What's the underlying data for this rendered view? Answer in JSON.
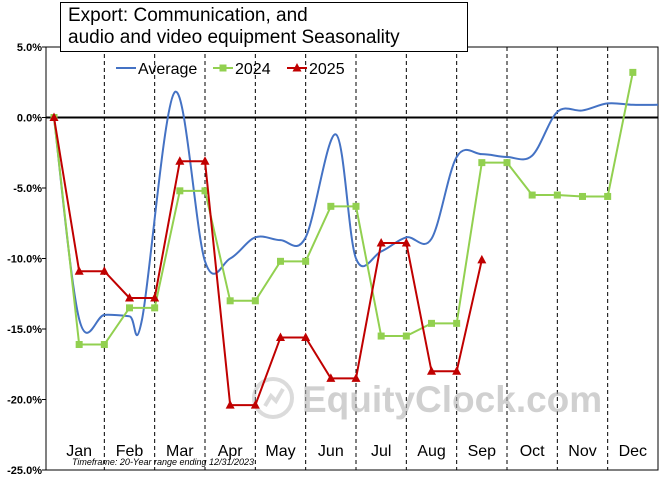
{
  "chart_data": {
    "type": "line",
    "title_lines": [
      "Export: Communication, and",
      "audio and video equipment Seasonality"
    ],
    "months": [
      "Jan",
      "Feb",
      "Mar",
      "Apr",
      "May",
      "Jun",
      "Jul",
      "Aug",
      "Sep",
      "Oct",
      "Nov",
      "Dec"
    ],
    "ylim": [
      -25,
      5
    ],
    "yticks": [
      "5.0%",
      "0.0%",
      "-5.0%",
      "-10.0%",
      "-15.0%",
      "-20.0%",
      "-25.0%"
    ],
    "ytick_values": [
      5,
      0,
      -5,
      -10,
      -15,
      -20,
      -25
    ],
    "footnote": "Timeframe: 20-Year range ending 12/31/2023",
    "watermark": "EquityClock.com",
    "legend_position": "top",
    "series": [
      {
        "name": "Average",
        "color": "#4472c4",
        "smooth": true,
        "marker": "none",
        "x": [
          0,
          0.5,
          1.0,
          1.5,
          1.75,
          2.4,
          3.0,
          3.5,
          4.0,
          4.5,
          5.0,
          5.6,
          6.0,
          6.5,
          7.0,
          7.5,
          8.0,
          8.5,
          9.0,
          9.5,
          10.0,
          10.5,
          11.0,
          11.5,
          12.0
        ],
        "y": [
          0,
          -14.3,
          -14.0,
          -14.1,
          -14.3,
          1.8,
          -10.2,
          -10.0,
          -8.5,
          -8.7,
          -8.5,
          -1.2,
          -10.0,
          -9.5,
          -8.5,
          -8.6,
          -2.8,
          -2.6,
          -2.8,
          -2.7,
          0.4,
          0.5,
          1.0,
          0.9,
          0.9
        ]
      },
      {
        "name": "2024",
        "color": "#92d050",
        "smooth": false,
        "marker": "square",
        "x": [
          0,
          0.5,
          1.0,
          1.5,
          2.0,
          2.5,
          3.0,
          3.5,
          4.0,
          4.5,
          5.0,
          5.5,
          6.0,
          6.5,
          7.0,
          7.5,
          8.0,
          8.5,
          9.0,
          9.5,
          10.0,
          10.5,
          11.0,
          11.5
        ],
        "y": [
          0,
          -16.1,
          -16.1,
          -13.5,
          -13.5,
          -5.2,
          -5.2,
          -13.0,
          -13.0,
          -10.2,
          -10.2,
          -6.3,
          -6.3,
          -15.5,
          -15.5,
          -14.6,
          -14.6,
          -3.2,
          -3.2,
          -5.5,
          -5.5,
          -5.6,
          -5.6,
          3.2
        ]
      },
      {
        "name": "2025",
        "color": "#c00000",
        "smooth": false,
        "marker": "triangle",
        "x": [
          0,
          0.5,
          1.0,
          1.5,
          2.0,
          2.5,
          3.0,
          3.5,
          4.0,
          4.5,
          5.0,
          5.5,
          6.0,
          6.5,
          7.0,
          7.5,
          8.0,
          8.5
        ],
        "y": [
          0,
          -10.9,
          -10.9,
          -12.8,
          -12.8,
          -3.1,
          -3.1,
          -20.4,
          -20.4,
          -15.6,
          -15.6,
          -18.5,
          -18.5,
          -8.9,
          -8.9,
          -18.0,
          -18.0,
          -10.1
        ]
      }
    ]
  }
}
